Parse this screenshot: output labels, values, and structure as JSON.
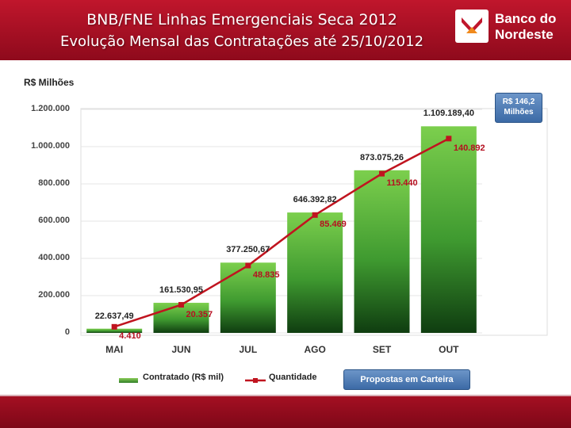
{
  "header": {
    "title_line1": "BNB/FNE Linhas Emergenciais Seca 2012",
    "title_line2": "Evolução Mensal das Contratações até 25/10/2012",
    "brand_color": "#a8101f"
  },
  "logo": {
    "line1": "Banco do",
    "line2": "Nordeste"
  },
  "note": {
    "line1": "R$  146,2",
    "line2": "Milhões"
  },
  "proposals_button": "Propostas em Carteira",
  "legend": {
    "bar": "Contratado (R$ mil)",
    "line": "Quantidade"
  },
  "chart_data": {
    "type": "bar",
    "title": "",
    "ylabel": "R$ Milhões",
    "xlabel": "",
    "ylim": [
      0,
      1200000
    ],
    "yticks": [
      "0",
      "200.000",
      "400.000",
      "600.000",
      "800.000",
      "1.000.000",
      "1.200.000"
    ],
    "categories": [
      "MAI",
      "JUN",
      "JUL",
      "AGO",
      "SET",
      "OUT"
    ],
    "series": [
      {
        "name": "Contratado (R$ mil)",
        "type": "bar",
        "values": [
          22637.49,
          161530.95,
          377250.67,
          646392.82,
          873075.26,
          1109189.4
        ],
        "labels": [
          "22.637,49",
          "161.530,95",
          "377.250,67",
          "646.392,82",
          "873.075,26",
          "1.109.189,40"
        ],
        "color": "#3a8f2e"
      },
      {
        "name": "Quantidade",
        "type": "line",
        "values": [
          4410,
          20357,
          48835,
          85469,
          115440,
          140892
        ],
        "labels": [
          "4.410",
          "20.357",
          "48.835",
          "85.469",
          "115.440",
          "140.892"
        ],
        "color": "#c0141f"
      }
    ],
    "grid": true,
    "legend_position": "bottom"
  }
}
